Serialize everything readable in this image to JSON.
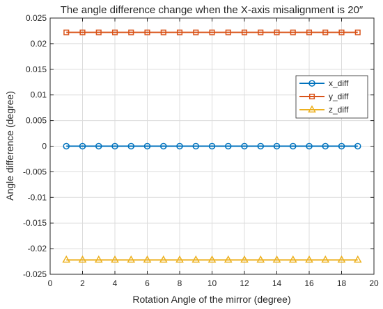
{
  "chart_data": {
    "type": "line",
    "title": "The angle difference change when the X-axis misalignment is 20″",
    "xlabel": "Rotation Angle of the mirror (degree)",
    "ylabel": "Angle difference (degree)",
    "xlim": [
      0,
      20
    ],
    "ylim": [
      -0.025,
      0.025
    ],
    "xticks": [
      0,
      2,
      4,
      6,
      8,
      10,
      12,
      14,
      16,
      18,
      20
    ],
    "xtick_labels": [
      "0",
      "2",
      "4",
      "6",
      "8",
      "10",
      "12",
      "14",
      "16",
      "18",
      "20"
    ],
    "yticks": [
      0.025,
      0.02,
      0.015,
      0.01,
      0.005,
      0,
      -0.005,
      -0.01,
      -0.015,
      -0.02,
      -0.025
    ],
    "ytick_labels": [
      "0.025",
      "0.02",
      "0.015",
      "0.01",
      "0.005",
      "0",
      "-0.005",
      "-0.01",
      "-0.015",
      "-0.02",
      "-0.025"
    ],
    "grid": true,
    "legend_position": "right",
    "x": [
      1,
      2,
      3,
      4,
      5,
      6,
      7,
      8,
      9,
      10,
      11,
      12,
      13,
      14,
      15,
      16,
      17,
      18,
      19
    ],
    "series": [
      {
        "name": "x_diff",
        "color": "#0072BD",
        "marker": "circle",
        "values": [
          0,
          0,
          0,
          0,
          0,
          0,
          0,
          0,
          0,
          0,
          0,
          0,
          0,
          0,
          0,
          0,
          0,
          0,
          0
        ]
      },
      {
        "name": "y_diff",
        "color": "#D95319",
        "marker": "square",
        "values": [
          0.0222,
          0.0222,
          0.0222,
          0.0222,
          0.0222,
          0.0222,
          0.0222,
          0.0222,
          0.0222,
          0.0222,
          0.0222,
          0.0222,
          0.0222,
          0.0222,
          0.0222,
          0.0222,
          0.0222,
          0.0222,
          0.0222
        ]
      },
      {
        "name": "z_diff",
        "color": "#EDB120",
        "marker": "triangle",
        "values": [
          -0.0222,
          -0.0222,
          -0.0222,
          -0.0222,
          -0.0222,
          -0.0222,
          -0.0222,
          -0.0222,
          -0.0222,
          -0.0222,
          -0.0222,
          -0.0222,
          -0.0222,
          -0.0222,
          -0.0222,
          -0.0222,
          -0.0222,
          -0.0222,
          -0.0222
        ]
      }
    ]
  }
}
